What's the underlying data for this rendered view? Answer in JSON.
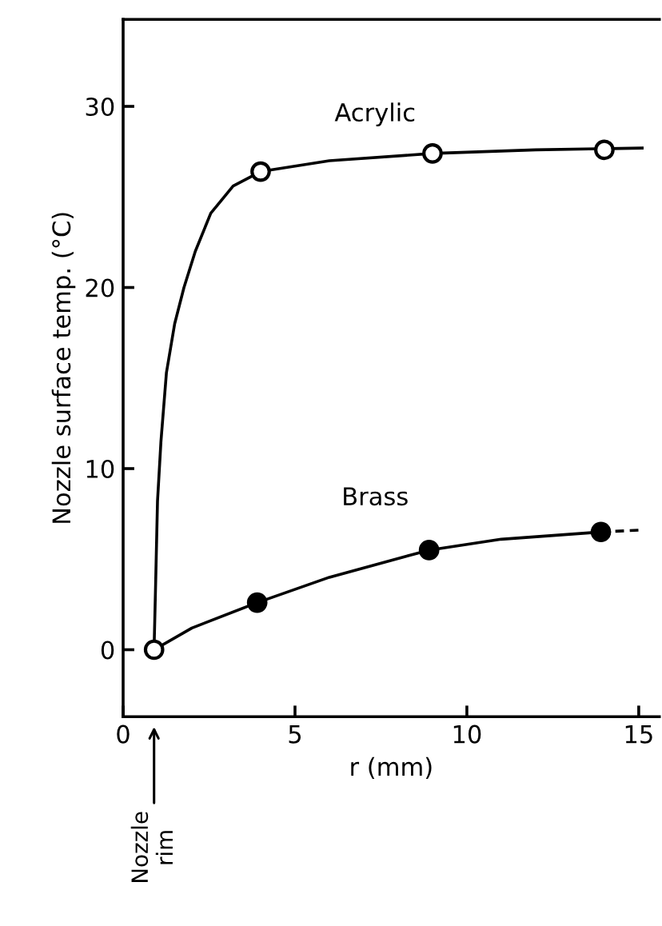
{
  "chart_data": {
    "type": "line",
    "xlabel": "r (mm)",
    "ylabel": "Nozzle surface temp. (°C)",
    "xlim": [
      0,
      15.6
    ],
    "ylim": [
      -3.7,
      34.8
    ],
    "xticks": [
      0,
      5,
      10,
      15
    ],
    "yticks": [
      0,
      10,
      20,
      30
    ],
    "grid": false,
    "legend": false,
    "series": [
      {
        "name": "Acrylic",
        "color": "#000000",
        "line_style": "solid",
        "marker": "none",
        "x": [
          0.9,
          0.95,
          1.0,
          1.1,
          1.26,
          1.5,
          1.77,
          2.1,
          2.55,
          3.2,
          4,
          6,
          9,
          12,
          15.1
        ],
        "values": [
          0,
          4,
          8.2,
          11.5,
          15.3,
          18,
          20,
          22,
          24.1,
          25.6,
          26.4,
          27.0,
          27.4,
          27.6,
          27.7
        ]
      },
      {
        "name": "Brass",
        "color": "#000000",
        "line_style": "solid",
        "marker": "none",
        "x": [
          0.9,
          2,
          3.9,
          6,
          8.9,
          11,
          13.9
        ],
        "values": [
          0,
          1.2,
          2.6,
          4.0,
          5.5,
          6.1,
          6.5
        ]
      },
      {
        "color": "#000000",
        "line_style": "dashed",
        "marker": "none",
        "x": [
          13.9,
          15
        ],
        "values": [
          6.5,
          6.6
        ]
      },
      {
        "type": "scatter",
        "color": "#ffffff",
        "marker": "circle",
        "x": [
          0.9,
          4,
          9,
          14
        ],
        "values": [
          0,
          26.4,
          27.4,
          27.6
        ]
      },
      {
        "type": "scatter",
        "color": "#000000",
        "marker": "circle",
        "x": [
          3.9,
          8.9,
          13.9
        ],
        "values": [
          2.6,
          5.5,
          6.5
        ]
      }
    ],
    "annotations": [
      "Nozzle\nrim"
    ]
  }
}
